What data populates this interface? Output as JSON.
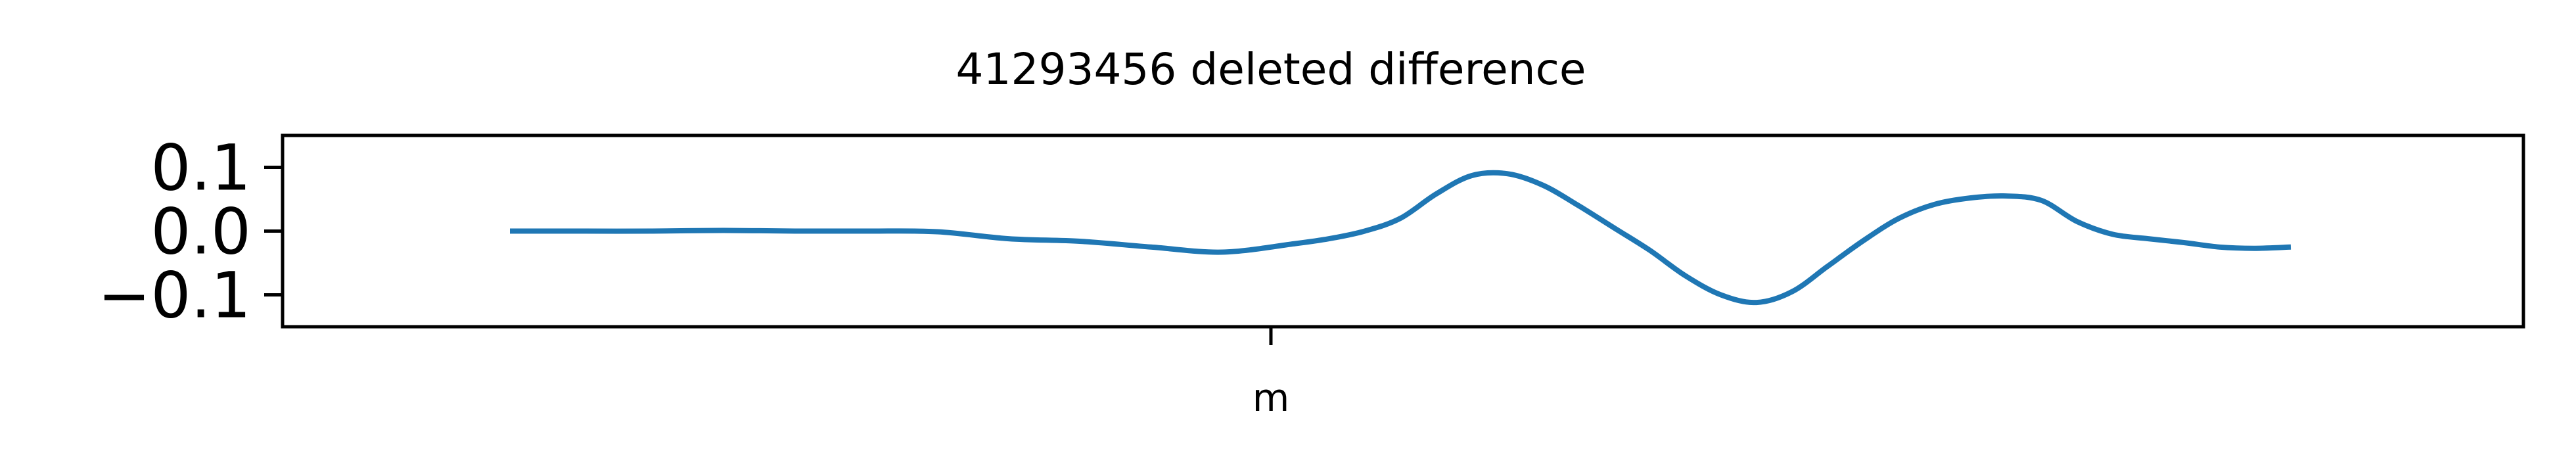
{
  "chart_data": {
    "type": "line",
    "title": "41293456 deleted difference",
    "xlabel": "",
    "ylabel": "",
    "x_tick_labels": [
      "m"
    ],
    "y_ticks": [
      0.1,
      0.0,
      -0.1
    ],
    "y_tick_labels": [
      "0.1",
      "0.0",
      "−0.1"
    ],
    "ylim": [
      -0.15,
      0.15
    ],
    "grid": false,
    "legend": "none",
    "line_color": "#1f77b4",
    "series": [
      {
        "x": [
          0,
          4,
          8,
          12,
          16,
          20,
          24,
          28,
          32,
          36,
          40,
          44,
          46,
          48,
          50,
          52,
          54,
          56,
          58,
          60,
          62,
          64,
          66,
          68,
          70,
          72,
          74,
          76,
          78,
          80,
          82,
          84,
          86,
          88,
          90,
          92,
          94,
          96,
          98,
          100
        ],
        "y": [
          0.0,
          0.0,
          0.0,
          0.001,
          0.0,
          0.0,
          -0.001,
          -0.012,
          -0.016,
          -0.025,
          -0.033,
          -0.02,
          -0.012,
          0.0,
          0.02,
          0.058,
          0.087,
          0.09,
          0.072,
          0.04,
          0.005,
          -0.03,
          -0.07,
          -0.1,
          -0.112,
          -0.095,
          -0.055,
          -0.015,
          0.02,
          0.042,
          0.052,
          0.055,
          0.048,
          0.015,
          -0.005,
          -0.012,
          -0.018,
          -0.025,
          -0.027,
          -0.025
        ]
      }
    ]
  }
}
